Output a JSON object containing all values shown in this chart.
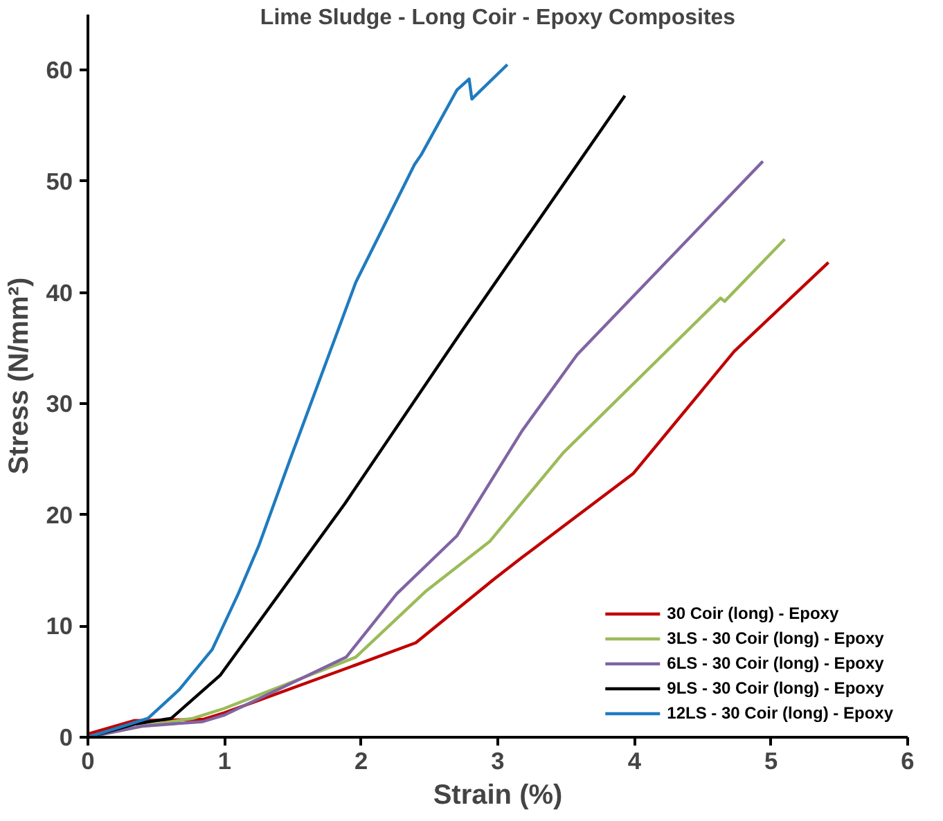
{
  "chart_data": {
    "type": "line",
    "title": "Lime Sludge - Long Coir - Epoxy Composites",
    "xlabel": "Strain (%)",
    "ylabel": "Stress (N/mm²)",
    "xlim": [
      0,
      6
    ],
    "xticks": [
      0,
      1,
      2,
      3,
      4,
      5,
      6
    ],
    "ylim": [
      0,
      65
    ],
    "yticks": [
      0,
      10,
      20,
      30,
      40,
      50,
      60
    ],
    "grid": false,
    "legend": "bottom right",
    "line_style": "solid",
    "marker": "none",
    "series": [
      {
        "name": "30 Coir (long) - Epoxy",
        "color": "#c00000",
        "x": [
          0,
          0.34,
          0.84,
          1.0,
          1.96,
          2.4,
          2.97,
          3.18,
          3.99,
          4.73,
          5.42
        ],
        "values": [
          0.3,
          1.5,
          1.6,
          2.2,
          6.5,
          8.5,
          14.2,
          16.2,
          23.7,
          34.7,
          42.7
        ]
      },
      {
        "name": "3LS - 30 Coir (long) - Epoxy",
        "color": "#9bbb59",
        "x": [
          0,
          0.4,
          0.77,
          1.0,
          1.96,
          2.47,
          2.94,
          3.48,
          4.63,
          4.66,
          5.1
        ],
        "values": [
          0,
          1.0,
          1.7,
          2.6,
          7.2,
          13.1,
          17.6,
          25.6,
          39.5,
          39.2,
          44.8
        ]
      },
      {
        "name": "6LS - 30 Coir (long) - Epoxy",
        "color": "#8064a2",
        "x": [
          0,
          0.4,
          0.84,
          1.0,
          1.89,
          2.26,
          2.7,
          3.18,
          3.58,
          4.94
        ],
        "values": [
          0,
          1.0,
          1.4,
          2.0,
          7.2,
          12.9,
          18.1,
          27.6,
          34.4,
          51.8
        ]
      },
      {
        "name": "9LS - 30 Coir (long) - Epoxy",
        "color": "#000000",
        "x": [
          0,
          0.35,
          0.61,
          0.97,
          1.88,
          2.74,
          3.93
        ],
        "values": [
          0,
          1.2,
          1.7,
          5.6,
          21,
          36.6,
          57.7
        ]
      },
      {
        "name": "12LS - 30 Coir (long) - Epoxy",
        "color": "#1f7bbf",
        "x": [
          0,
          0.44,
          0.67,
          0.91,
          1.1,
          1.25,
          1.48,
          1.96,
          2.39,
          2.44,
          2.7,
          2.79,
          2.81,
          3.07
        ],
        "values": [
          0,
          1.7,
          4.3,
          7.9,
          12.9,
          17.2,
          25,
          40.9,
          51.5,
          52.4,
          58.2,
          59.2,
          57.4,
          60.5
        ]
      }
    ]
  }
}
